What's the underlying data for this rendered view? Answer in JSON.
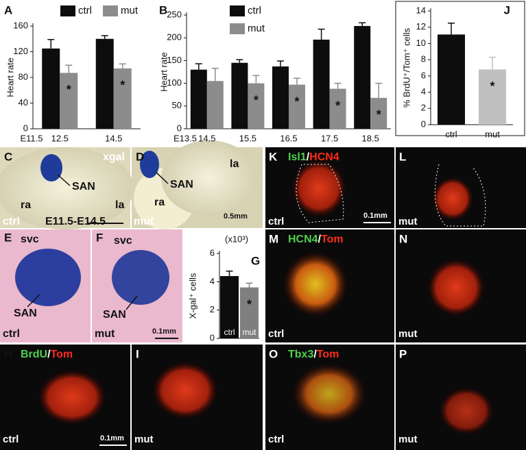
{
  "chart_data": [
    {
      "type": "bar",
      "panel": "A",
      "y_label": "Heart rate",
      "x_start": "E11.5",
      "categories": [
        "12.5",
        "14.5"
      ],
      "ylim": [
        0,
        160
      ],
      "yticks": [
        0,
        40,
        80,
        120,
        160
      ],
      "series": [
        {
          "name": "ctrl",
          "color": "#0d0d0d",
          "values": [
            125,
            140
          ],
          "errors": [
            14,
            5
          ],
          "annotations": [
            null,
            null
          ]
        },
        {
          "name": "mut",
          "color": "#8c8c8c",
          "values": [
            87,
            94
          ],
          "errors": [
            12,
            7
          ],
          "annotations": [
            "*",
            "*"
          ]
        }
      ]
    },
    {
      "type": "bar",
      "panel": "B",
      "y_label": "Heart rate",
      "x_start": "E13.5",
      "categories": [
        "14.5",
        "15.5",
        "16.5",
        "17.5",
        "18.5"
      ],
      "ylim": [
        0,
        250
      ],
      "yticks": [
        0,
        50,
        100,
        150,
        200,
        250
      ],
      "series": [
        {
          "name": "ctrl",
          "color": "#0d0d0d",
          "values": [
            130,
            145,
            137,
            196,
            226
          ],
          "errors": [
            13,
            7,
            12,
            23,
            7
          ],
          "annotations": [
            null,
            null,
            null,
            null,
            null
          ]
        },
        {
          "name": "mut",
          "color": "#8c8c8c",
          "values": [
            105,
            100,
            97,
            88,
            68
          ],
          "errors": [
            28,
            17,
            14,
            12,
            32
          ],
          "annotations": [
            null,
            "*",
            "*",
            "*",
            "*"
          ]
        }
      ]
    },
    {
      "type": "bar",
      "panel": "J",
      "y_label": "% BrdU⁺/Tom⁺ cells",
      "categories": [
        "ctrl",
        "mut"
      ],
      "ylim": [
        0,
        14
      ],
      "yticks": [
        0,
        2,
        4,
        6,
        8,
        10,
        12,
        14
      ],
      "series": [
        {
          "colors": [
            "#0d0d0d",
            "#c0c0c0"
          ],
          "values": [
            11.1,
            6.8
          ],
          "errors": [
            1.4,
            1.5
          ],
          "annotations": [
            null,
            "*"
          ]
        }
      ]
    },
    {
      "type": "bar",
      "panel": "G",
      "y_label": "X-gal⁺ cells",
      "y_unit": "(x10³)",
      "categories": [
        "ctrl",
        "mut"
      ],
      "ylim": [
        0,
        6
      ],
      "yticks": [
        0,
        2,
        4,
        6
      ],
      "series": [
        {
          "colors": [
            "#0d0d0d",
            "#7f7f7f"
          ],
          "values": [
            4.4,
            3.6
          ],
          "errors": [
            0.35,
            0.3
          ],
          "annotations": [
            null,
            "*"
          ]
        }
      ]
    }
  ],
  "panels": [
    {
      "letter": "C",
      "texts": [
        "xgal",
        "SAN",
        "ra",
        "la",
        "ctrl",
        "E11.5-E14.5"
      ]
    },
    {
      "letter": "D",
      "texts": [
        "SAN",
        "la",
        "ra",
        "mut",
        "0.5mm"
      ]
    },
    {
      "letter": "E",
      "texts": [
        "svc",
        "SAN",
        "ctrl"
      ]
    },
    {
      "letter": "F",
      "texts": [
        "svc",
        "SAN",
        "mut",
        "0.1mm"
      ]
    },
    {
      "letter": "H",
      "texts": [
        "BrdU",
        "/",
        "Tom",
        "ctrl",
        "0.1mm"
      ]
    },
    {
      "letter": "I",
      "texts": [
        "mut"
      ]
    },
    {
      "letter": "K",
      "texts": [
        "Isl1",
        "/",
        "HCN4",
        "ctrl",
        "0.1mm"
      ]
    },
    {
      "letter": "L",
      "texts": [
        "mut"
      ]
    },
    {
      "letter": "M",
      "texts": [
        "HCN4",
        "/",
        "Tom",
        "ctrl"
      ]
    },
    {
      "letter": "N",
      "texts": [
        "mut"
      ]
    },
    {
      "letter": "O",
      "texts": [
        "Tbx3",
        "/",
        "Tom",
        "ctrl"
      ]
    },
    {
      "letter": "P",
      "texts": [
        "mut"
      ]
    }
  ]
}
